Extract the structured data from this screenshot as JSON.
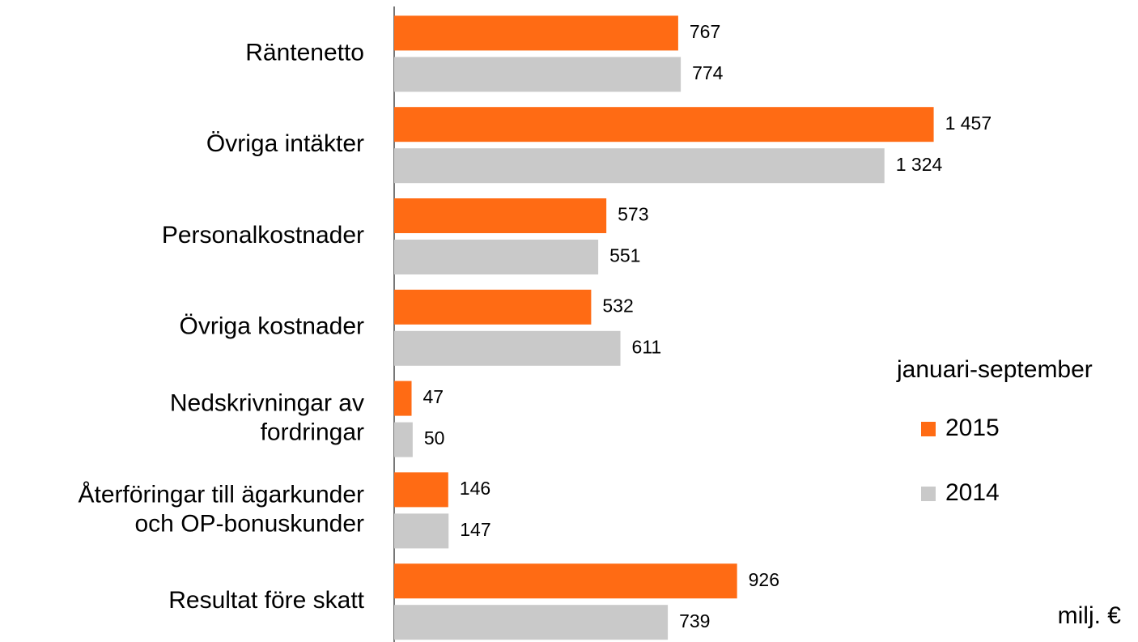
{
  "chart_data": {
    "type": "bar",
    "orientation": "horizontal",
    "categories": [
      "Räntenetto",
      "Övriga intäkter",
      "Personalkostnader",
      "Övriga kostnader",
      "Nedskrivningar av\nfordringar",
      "Återföringar till ägarkunder\noch OP-bonuskunder",
      "Resultat före skatt"
    ],
    "series": [
      {
        "name": "2015",
        "color": "#ff6b14",
        "values": [
          767,
          1457,
          573,
          532,
          47,
          146,
          926
        ],
        "value_labels": [
          "767",
          "1 457",
          "573",
          "532",
          "47",
          "146",
          "926"
        ]
      },
      {
        "name": "2014",
        "color": "#c9c9c9",
        "values": [
          774,
          1324,
          551,
          611,
          50,
          147,
          739
        ],
        "value_labels": [
          "774",
          "1 324",
          "551",
          "611",
          "50",
          "147",
          "739"
        ]
      }
    ],
    "xlim": [
      0,
      2000
    ],
    "legend_title": "januari-september",
    "legend_position": "right",
    "unit_label": "milj. €"
  }
}
